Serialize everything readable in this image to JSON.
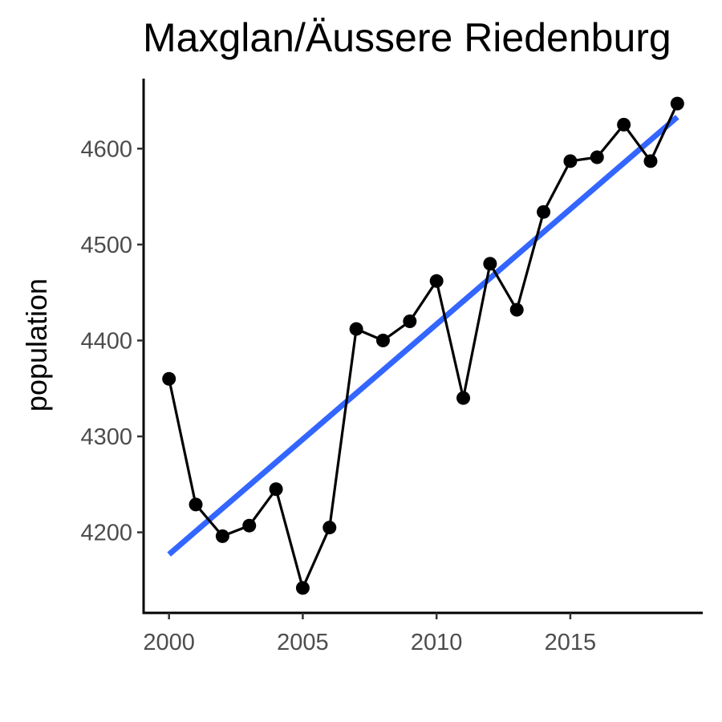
{
  "chart_data": {
    "type": "line",
    "title": "Maxglan/Äussere Riedenburg",
    "xlabel": "",
    "ylabel": "population",
    "x": [
      2000,
      2001,
      2002,
      2003,
      2004,
      2005,
      2006,
      2007,
      2008,
      2009,
      2010,
      2011,
      2012,
      2013,
      2014,
      2015,
      2016,
      2017,
      2018,
      2019
    ],
    "series": [
      {
        "values": [
          4360,
          4229,
          4196,
          4207,
          4245,
          4142,
          4205,
          4412,
          4400,
          4420,
          4462,
          4340,
          4480,
          4432,
          4534,
          4587,
          4591,
          4625,
          4587,
          4647
        ],
        "color": "#000000",
        "markers": true
      }
    ],
    "trend_line": {
      "method": "linear fit",
      "from": [
        2000,
        4177
      ],
      "to": [
        2019,
        4633
      ],
      "color": "#3366ff"
    },
    "xticks": [
      2000,
      2005,
      2010,
      2015
    ],
    "xtick_labels": [
      "2000",
      "2005",
      "2010",
      "2015"
    ],
    "yticks": [
      4200,
      4300,
      4400,
      4500,
      4600
    ],
    "ytick_labels": [
      "4200",
      "4300",
      "4400",
      "4500",
      "4600"
    ],
    "xlim": [
      1999.05,
      2019.95
    ],
    "ylim": [
      4116,
      4673
    ],
    "grid": false,
    "legend": "none"
  }
}
